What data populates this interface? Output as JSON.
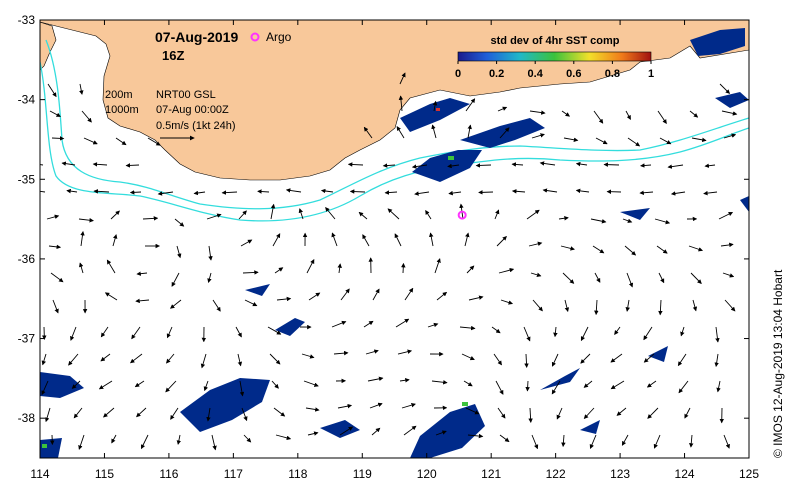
{
  "map": {
    "date_label": "07-Aug-2019",
    "hour_label": "16Z",
    "argo_label": "Argo",
    "isobath_200": "200m",
    "isobath_1000": "1000m",
    "product_label": "NRT00 GSL",
    "product_date": "07-Aug 00:00Z",
    "arrow_scale_label": "0.5m/s (1kt 24h)",
    "side_credit": "© IMOS 12-Aug-2019 13:04 Hobart",
    "lon_ticks": [
      "114",
      "115",
      "116",
      "117",
      "118",
      "119",
      "120",
      "121",
      "122",
      "123",
      "124",
      "125"
    ],
    "lat_ticks": [
      "-33",
      "-34",
      "-35",
      "-36",
      "-37",
      "-38"
    ],
    "colorbar": {
      "title": "std dev of 4hr SST comp",
      "ticks": [
        "0",
        "0.2",
        "0.4",
        "0.6",
        "0.8",
        "1"
      ]
    },
    "argo_float": {
      "lon": 120.55,
      "lat": -35.45
    },
    "colors": {
      "land": "#f8c89a",
      "isobath": "#33dddd",
      "argo_marker": "#ff33ff",
      "sst_patch": "#002a8a"
    }
  }
}
